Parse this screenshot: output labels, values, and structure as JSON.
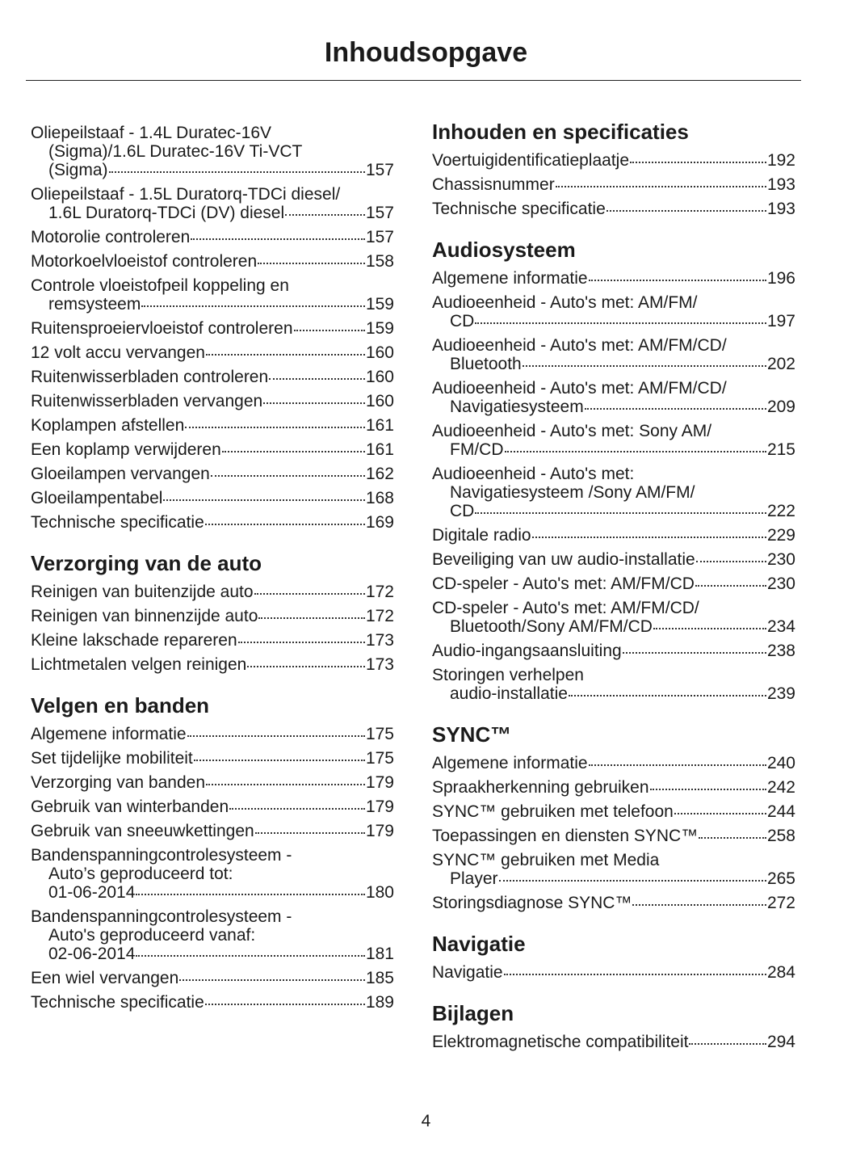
{
  "header": {
    "title": "Inhoudsopgave"
  },
  "columns": [
    {
      "sections": [
        {
          "entries": [
            {
              "lines": [
                "Oliepeilstaaf - 1.4L Duratec-16V",
                "(Sigma)/1.6L Duratec-16V Ti-VCT",
                "(Sigma)"
              ],
              "page": "157"
            },
            {
              "lines": [
                "Oliepeilstaaf - 1.5L Duratorq-TDCi diesel/",
                "1.6L Duratorq-TDCi (DV) diesel"
              ],
              "page": "157"
            },
            {
              "lines": [
                "Motorolie controleren"
              ],
              "page": "157"
            },
            {
              "lines": [
                "Motorkoelvloeistof controleren"
              ],
              "page": "158"
            },
            {
              "lines": [
                "Controle vloeistofpeil koppeling en",
                "remsysteem"
              ],
              "page": "159"
            },
            {
              "lines": [
                "Ruitensproeiervloeistof controleren"
              ],
              "page": "159"
            },
            {
              "lines": [
                "12 volt accu vervangen"
              ],
              "page": "160"
            },
            {
              "lines": [
                "Ruitenwisserbladen controleren"
              ],
              "page": "160"
            },
            {
              "lines": [
                "Ruitenwisserbladen vervangen"
              ],
              "page": "160"
            },
            {
              "lines": [
                "Koplampen afstellen"
              ],
              "page": "161"
            },
            {
              "lines": [
                "Een koplamp verwijderen"
              ],
              "page": "161"
            },
            {
              "lines": [
                "Gloeilampen vervangen"
              ],
              "page": "162"
            },
            {
              "lines": [
                "Gloeilampentabel"
              ],
              "page": "168"
            },
            {
              "lines": [
                "Technische specificatie"
              ],
              "page": "169"
            }
          ]
        },
        {
          "heading": "Verzorging van de auto",
          "entries": [
            {
              "lines": [
                "Reinigen van buitenzijde auto"
              ],
              "page": "172"
            },
            {
              "lines": [
                "Reinigen van binnenzijde auto"
              ],
              "page": "172"
            },
            {
              "lines": [
                "Kleine lakschade repareren"
              ],
              "page": "173"
            },
            {
              "lines": [
                "Lichtmetalen velgen reinigen"
              ],
              "page": "173"
            }
          ]
        },
        {
          "heading": "Velgen en banden",
          "entries": [
            {
              "lines": [
                "Algemene informatie"
              ],
              "page": "175"
            },
            {
              "lines": [
                "Set tijdelijke mobiliteit"
              ],
              "page": "175"
            },
            {
              "lines": [
                "Verzorging van banden"
              ],
              "page": "179"
            },
            {
              "lines": [
                "Gebruik van winterbanden"
              ],
              "page": "179"
            },
            {
              "lines": [
                "Gebruik van sneeuwkettingen"
              ],
              "page": "179"
            },
            {
              "lines": [
                "Bandenspanningcontrolesysteem -",
                "Auto’s geproduceerd tot:",
                "01-06-2014"
              ],
              "page": "180"
            },
            {
              "lines": [
                "Bandenspanningcontrolesysteem -",
                "Auto's geproduceerd vanaf:",
                "02-06-2014"
              ],
              "page": "181"
            },
            {
              "lines": [
                "Een wiel vervangen"
              ],
              "page": "185"
            },
            {
              "lines": [
                "Technische specificatie"
              ],
              "page": "189"
            }
          ]
        }
      ]
    },
    {
      "sections": [
        {
          "heading": "Inhouden en specificaties",
          "entries": [
            {
              "lines": [
                "Voertuigidentificatieplaatje"
              ],
              "page": "192"
            },
            {
              "lines": [
                "Chassisnummer"
              ],
              "page": "193"
            },
            {
              "lines": [
                "Technische specificatie"
              ],
              "page": "193"
            }
          ]
        },
        {
          "heading": "Audiosysteem",
          "entries": [
            {
              "lines": [
                "Algemene informatie"
              ],
              "page": "196"
            },
            {
              "lines": [
                "Audioeenheid - Auto's met: AM/FM/",
                "CD"
              ],
              "page": "197"
            },
            {
              "lines": [
                "Audioeenheid - Auto's met: AM/FM/CD/",
                "Bluetooth"
              ],
              "page": "202"
            },
            {
              "lines": [
                "Audioeenheid - Auto's met: AM/FM/CD/",
                "Navigatiesysteem"
              ],
              "page": "209"
            },
            {
              "lines": [
                "Audioeenheid - Auto's met: Sony AM/",
                "FM/CD"
              ],
              "page": "215"
            },
            {
              "lines": [
                "Audioeenheid - Auto's met:",
                "Navigatiesysteem /Sony AM/FM/",
                "CD"
              ],
              "page": "222"
            },
            {
              "lines": [
                "Digitale radio"
              ],
              "page": "229"
            },
            {
              "lines": [
                "Beveiliging van uw audio-installatie"
              ],
              "page": "230"
            },
            {
              "lines": [
                "CD-speler - Auto's met: AM/FM/CD"
              ],
              "page": "230"
            },
            {
              "lines": [
                "CD-speler - Auto's met: AM/FM/CD/",
                "Bluetooth/Sony AM/FM/CD"
              ],
              "page": "234"
            },
            {
              "lines": [
                "Audio-ingangsaansluiting"
              ],
              "page": "238"
            },
            {
              "lines": [
                "Storingen verhelpen",
                "audio-installatie"
              ],
              "page": "239"
            }
          ]
        },
        {
          "heading": "SYNC™",
          "entries": [
            {
              "lines": [
                "Algemene informatie"
              ],
              "page": "240"
            },
            {
              "lines": [
                "Spraakherkenning gebruiken"
              ],
              "page": "242"
            },
            {
              "lines": [
                "SYNC™ gebruiken met telefoon"
              ],
              "page": "244"
            },
            {
              "lines": [
                "Toepassingen en diensten SYNC™"
              ],
              "page": "258"
            },
            {
              "lines": [
                "SYNC™ gebruiken met Media",
                "Player"
              ],
              "page": "265"
            },
            {
              "lines": [
                "Storingsdiagnose SYNC™"
              ],
              "page": "272"
            }
          ]
        },
        {
          "heading": "Navigatie",
          "entries": [
            {
              "lines": [
                "Navigatie"
              ],
              "page": "284"
            }
          ]
        },
        {
          "heading": "Bijlagen",
          "entries": [
            {
              "lines": [
                "Elektromagnetische compatibiliteit"
              ],
              "page": "294"
            }
          ]
        }
      ]
    }
  ],
  "footer": {
    "page_number": "4"
  }
}
